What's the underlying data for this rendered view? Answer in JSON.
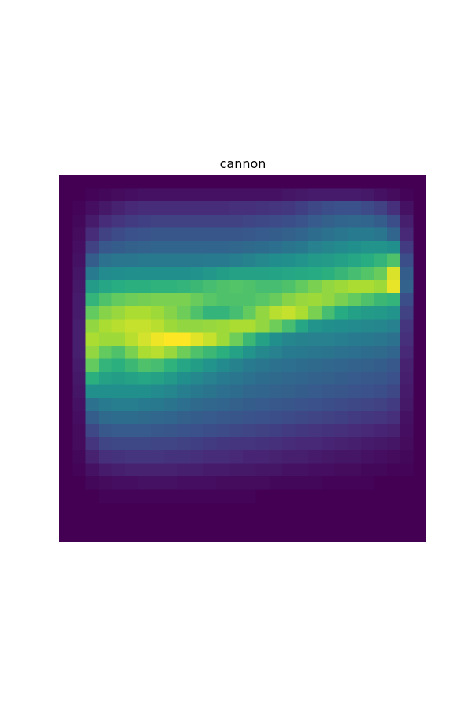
{
  "chart_data": {
    "type": "heatmap",
    "title": "cannon",
    "xlabel": "",
    "ylabel": "",
    "colormap": "viridis",
    "vmin": 0,
    "vmax": 1,
    "axes_visible": false,
    "grid": false,
    "rows": 28,
    "cols": 28,
    "values": [
      [
        0,
        0,
        0,
        0,
        0,
        0,
        0,
        0,
        0,
        0,
        0,
        0,
        0,
        0,
        0,
        0,
        0,
        0,
        0,
        0,
        0,
        0,
        0,
        0,
        0,
        0,
        0,
        0
      ],
      [
        0,
        0,
        0.01,
        0.02,
        0.03,
        0.04,
        0.05,
        0.05,
        0.05,
        0.05,
        0.05,
        0.05,
        0.05,
        0.05,
        0.05,
        0.05,
        0.05,
        0.06,
        0.07,
        0.08,
        0.08,
        0.08,
        0.08,
        0.07,
        0.05,
        0.03,
        0.01,
        0
      ],
      [
        0,
        0.01,
        0.04,
        0.07,
        0.1,
        0.12,
        0.13,
        0.13,
        0.13,
        0.13,
        0.13,
        0.13,
        0.13,
        0.14,
        0.14,
        0.15,
        0.16,
        0.17,
        0.19,
        0.22,
        0.24,
        0.25,
        0.25,
        0.23,
        0.2,
        0.14,
        0.05,
        0
      ],
      [
        0,
        0.02,
        0.08,
        0.13,
        0.16,
        0.18,
        0.19,
        0.2,
        0.2,
        0.2,
        0.2,
        0.2,
        0.2,
        0.2,
        0.21,
        0.22,
        0.23,
        0.24,
        0.26,
        0.29,
        0.31,
        0.33,
        0.34,
        0.33,
        0.3,
        0.24,
        0.09,
        0
      ],
      [
        0,
        0.03,
        0.13,
        0.2,
        0.23,
        0.25,
        0.26,
        0.27,
        0.27,
        0.27,
        0.27,
        0.27,
        0.27,
        0.27,
        0.28,
        0.29,
        0.3,
        0.31,
        0.33,
        0.36,
        0.38,
        0.4,
        0.42,
        0.42,
        0.4,
        0.33,
        0.12,
        0
      ],
      [
        0,
        0.04,
        0.2,
        0.28,
        0.3,
        0.31,
        0.32,
        0.33,
        0.33,
        0.33,
        0.33,
        0.33,
        0.33,
        0.34,
        0.35,
        0.36,
        0.37,
        0.39,
        0.41,
        0.44,
        0.46,
        0.48,
        0.5,
        0.52,
        0.52,
        0.5,
        0.18,
        0
      ],
      [
        0,
        0.05,
        0.3,
        0.38,
        0.4,
        0.4,
        0.41,
        0.41,
        0.41,
        0.41,
        0.41,
        0.42,
        0.42,
        0.43,
        0.45,
        0.47,
        0.49,
        0.5,
        0.52,
        0.54,
        0.55,
        0.57,
        0.6,
        0.63,
        0.66,
        0.72,
        0.24,
        0
      ],
      [
        0,
        0.06,
        0.42,
        0.48,
        0.49,
        0.5,
        0.5,
        0.5,
        0.5,
        0.5,
        0.51,
        0.53,
        0.56,
        0.58,
        0.58,
        0.58,
        0.59,
        0.6,
        0.61,
        0.62,
        0.64,
        0.67,
        0.7,
        0.73,
        0.77,
        0.95,
        0.3,
        0
      ],
      [
        0,
        0.07,
        0.55,
        0.6,
        0.63,
        0.64,
        0.64,
        0.65,
        0.65,
        0.66,
        0.68,
        0.7,
        0.72,
        0.73,
        0.72,
        0.7,
        0.7,
        0.72,
        0.76,
        0.8,
        0.84,
        0.86,
        0.88,
        0.88,
        0.86,
        0.97,
        0.32,
        0
      ],
      [
        0,
        0.08,
        0.66,
        0.72,
        0.76,
        0.78,
        0.79,
        0.8,
        0.8,
        0.8,
        0.77,
        0.74,
        0.72,
        0.72,
        0.72,
        0.74,
        0.77,
        0.82,
        0.85,
        0.86,
        0.84,
        0.8,
        0.76,
        0.72,
        0.68,
        0.66,
        0.24,
        0
      ],
      [
        0,
        0.08,
        0.76,
        0.82,
        0.85,
        0.88,
        0.88,
        0.86,
        0.82,
        0.78,
        0.72,
        0.66,
        0.66,
        0.7,
        0.76,
        0.84,
        0.9,
        0.92,
        0.88,
        0.8,
        0.7,
        0.62,
        0.57,
        0.55,
        0.54,
        0.52,
        0.2,
        0
      ],
      [
        0,
        0.09,
        0.84,
        0.88,
        0.9,
        0.92,
        0.92,
        0.9,
        0.86,
        0.84,
        0.84,
        0.85,
        0.86,
        0.88,
        0.88,
        0.84,
        0.78,
        0.7,
        0.6,
        0.52,
        0.5,
        0.49,
        0.48,
        0.47,
        0.46,
        0.44,
        0.16,
        0
      ],
      [
        0,
        0.09,
        0.88,
        0.86,
        0.86,
        0.9,
        0.94,
        0.98,
        1,
        1,
        0.96,
        0.92,
        0.86,
        0.78,
        0.68,
        0.58,
        0.5,
        0.46,
        0.45,
        0.44,
        0.44,
        0.43,
        0.42,
        0.41,
        0.4,
        0.38,
        0.14,
        0
      ],
      [
        0,
        0.09,
        0.84,
        0.76,
        0.72,
        0.8,
        0.88,
        0.9,
        0.85,
        0.78,
        0.72,
        0.68,
        0.64,
        0.58,
        0.52,
        0.47,
        0.44,
        0.42,
        0.41,
        0.4,
        0.39,
        0.38,
        0.37,
        0.36,
        0.35,
        0.33,
        0.12,
        0
      ],
      [
        0,
        0.08,
        0.76,
        0.66,
        0.64,
        0.68,
        0.72,
        0.7,
        0.65,
        0.6,
        0.56,
        0.52,
        0.48,
        0.45,
        0.42,
        0.4,
        0.38,
        0.37,
        0.36,
        0.35,
        0.34,
        0.33,
        0.32,
        0.31,
        0.3,
        0.28,
        0.1,
        0
      ],
      [
        0,
        0.07,
        0.64,
        0.58,
        0.56,
        0.58,
        0.6,
        0.58,
        0.54,
        0.5,
        0.47,
        0.44,
        0.42,
        0.4,
        0.38,
        0.36,
        0.35,
        0.34,
        0.33,
        0.32,
        0.31,
        0.3,
        0.29,
        0.28,
        0.27,
        0.25,
        0.09,
        0
      ],
      [
        0,
        0.06,
        0.5,
        0.5,
        0.5,
        0.5,
        0.5,
        0.48,
        0.46,
        0.43,
        0.41,
        0.39,
        0.37,
        0.36,
        0.34,
        0.33,
        0.32,
        0.31,
        0.3,
        0.29,
        0.28,
        0.27,
        0.26,
        0.25,
        0.24,
        0.22,
        0.08,
        0
      ],
      [
        0,
        0.05,
        0.38,
        0.42,
        0.43,
        0.43,
        0.42,
        0.41,
        0.39,
        0.37,
        0.35,
        0.34,
        0.33,
        0.31,
        0.3,
        0.29,
        0.28,
        0.27,
        0.26,
        0.25,
        0.24,
        0.23,
        0.22,
        0.21,
        0.2,
        0.18,
        0.07,
        0
      ],
      [
        0,
        0.04,
        0.3,
        0.35,
        0.36,
        0.36,
        0.35,
        0.34,
        0.33,
        0.31,
        0.3,
        0.29,
        0.28,
        0.27,
        0.26,
        0.25,
        0.24,
        0.23,
        0.22,
        0.21,
        0.2,
        0.19,
        0.18,
        0.17,
        0.16,
        0.14,
        0.05,
        0
      ],
      [
        0,
        0.03,
        0.22,
        0.28,
        0.29,
        0.29,
        0.29,
        0.28,
        0.27,
        0.26,
        0.25,
        0.24,
        0.23,
        0.22,
        0.21,
        0.2,
        0.19,
        0.18,
        0.17,
        0.16,
        0.15,
        0.14,
        0.13,
        0.12,
        0.11,
        0.1,
        0.04,
        0
      ],
      [
        0,
        0.03,
        0.16,
        0.21,
        0.22,
        0.22,
        0.22,
        0.21,
        0.21,
        0.2,
        0.19,
        0.18,
        0.17,
        0.16,
        0.16,
        0.15,
        0.14,
        0.13,
        0.12,
        0.12,
        0.11,
        0.1,
        0.09,
        0.08,
        0.07,
        0.06,
        0.03,
        0
      ],
      [
        0,
        0.02,
        0.1,
        0.14,
        0.15,
        0.16,
        0.16,
        0.16,
        0.15,
        0.15,
        0.14,
        0.13,
        0.13,
        0.12,
        0.11,
        0.11,
        0.1,
        0.09,
        0.09,
        0.08,
        0.07,
        0.06,
        0.06,
        0.05,
        0.04,
        0.03,
        0.02,
        0
      ],
      [
        0,
        0.01,
        0.05,
        0.08,
        0.09,
        0.1,
        0.1,
        0.1,
        0.1,
        0.09,
        0.09,
        0.08,
        0.08,
        0.07,
        0.07,
        0.06,
        0.06,
        0.05,
        0.05,
        0.04,
        0.04,
        0.03,
        0.03,
        0.02,
        0.02,
        0.01,
        0.01,
        0
      ],
      [
        0,
        0,
        0.02,
        0.03,
        0.04,
        0.04,
        0.05,
        0.05,
        0.05,
        0.04,
        0.04,
        0.04,
        0.03,
        0.03,
        0.03,
        0.03,
        0.02,
        0.02,
        0.02,
        0.02,
        0.01,
        0.01,
        0.01,
        0.01,
        0,
        0,
        0,
        0
      ],
      [
        0,
        0,
        0,
        0.01,
        0.01,
        0.01,
        0.01,
        0.01,
        0.01,
        0.01,
        0.01,
        0.01,
        0.01,
        0.01,
        0.01,
        0,
        0,
        0,
        0,
        0,
        0,
        0,
        0,
        0,
        0,
        0,
        0,
        0
      ],
      [
        0,
        0,
        0,
        0,
        0,
        0,
        0,
        0,
        0,
        0,
        0,
        0,
        0,
        0,
        0,
        0,
        0,
        0,
        0,
        0,
        0,
        0,
        0,
        0,
        0,
        0,
        0,
        0
      ],
      [
        0,
        0,
        0,
        0,
        0,
        0,
        0,
        0,
        0,
        0,
        0,
        0,
        0,
        0,
        0,
        0,
        0,
        0,
        0,
        0,
        0,
        0,
        0,
        0,
        0,
        0,
        0,
        0
      ],
      [
        0,
        0,
        0,
        0,
        0,
        0,
        0,
        0,
        0,
        0,
        0,
        0,
        0,
        0,
        0,
        0,
        0,
        0,
        0,
        0,
        0,
        0,
        0,
        0,
        0,
        0,
        0,
        0
      ]
    ]
  }
}
